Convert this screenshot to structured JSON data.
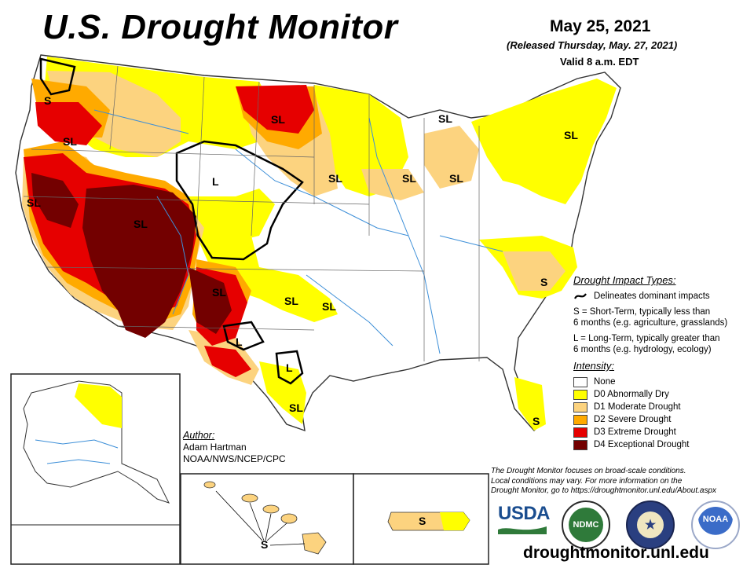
{
  "title": "U.S. Drought Monitor",
  "date": "May 25, 2021",
  "released": "(Released Thursday, May. 27, 2021)",
  "valid": "Valid 8 a.m. EDT",
  "impact_types": {
    "header": "Drought Impact Types:",
    "delineates": "Delineates dominant impacts",
    "s_line1": "S = Short-Term, typically less than",
    "s_line2": "6 months (e.g. agriculture, grasslands)",
    "l_line1": "L = Long-Term, typically greater than",
    "l_line2": "6 months (e.g. hydrology, ecology)"
  },
  "intensity": {
    "header": "Intensity:",
    "levels": [
      {
        "label": "None",
        "color": "#ffffff"
      },
      {
        "label": "D0 Abnormally Dry",
        "color": "#ffff00"
      },
      {
        "label": "D1 Moderate Drought",
        "color": "#fcd37f"
      },
      {
        "label": "D2 Severe Drought",
        "color": "#ffaa00"
      },
      {
        "label": "D3 Extreme Drought",
        "color": "#e60000"
      },
      {
        "label": "D4 Exceptional Drought",
        "color": "#730000"
      }
    ]
  },
  "author": {
    "header": "Author:",
    "name": "Adam Hartman",
    "org": "NOAA/NWS/NCEP/CPC"
  },
  "note": {
    "line1": "The Drought Monitor focuses on broad-scale conditions.",
    "line2": "Local conditions may vary. For more information on the",
    "line3": "Drought Monitor, go to https://droughtmonitor.unl.edu/About.aspx"
  },
  "footer_url": "droughtmonitor.unl.edu",
  "logos": {
    "usda": "USDA",
    "ndmc": "NDMC",
    "doc": "DOC",
    "noaa": "NOAA"
  },
  "map_labels": {
    "s_wa": "S",
    "sl_or": "SL",
    "sl_ca": "SL",
    "sl_nv": "SL",
    "l_wy": "L",
    "sl_nd": "SL",
    "sl_mn": "SL",
    "sl_wi": "SL",
    "sl_mi": "SL",
    "sl_up": "SL",
    "sl_ne": "SL",
    "s_nc": "S",
    "sl_nm": "SL",
    "sl_ok": "SL",
    "sl_ok2": "SL",
    "l_tx_w": "L",
    "l_tx_c": "L",
    "sl_tx_s": "SL",
    "s_fl": "S",
    "s_hi": "S",
    "s_pr": "S"
  }
}
